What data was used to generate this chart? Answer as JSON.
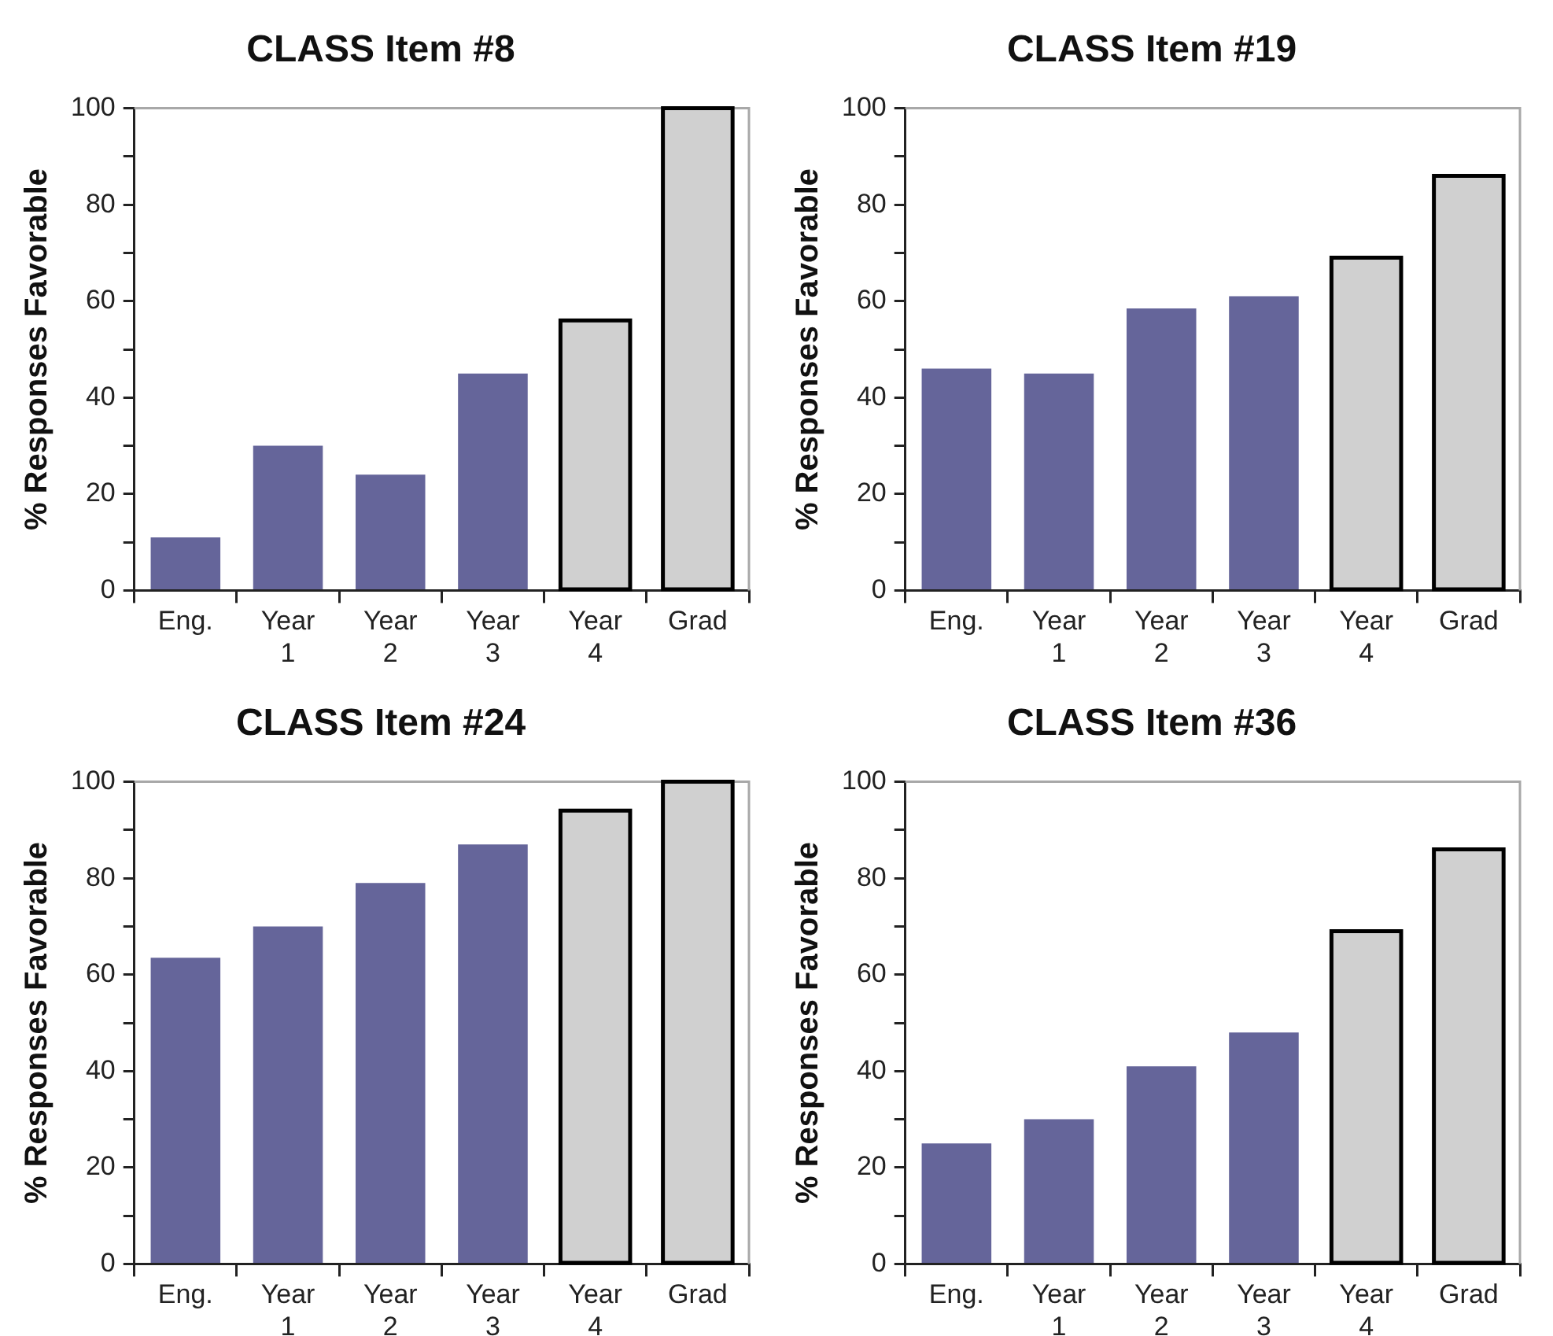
{
  "chart_data": [
    {
      "type": "bar",
      "title": "CLASS Item #8",
      "ylabel": "% Responses Favorable",
      "categories": [
        "Eng.",
        "Year 1",
        "Year 2",
        "Year 3",
        "Year 4",
        "Grad"
      ],
      "values": [
        11,
        30,
        24,
        45,
        56,
        100
      ],
      "colors": [
        "#65659a",
        "#65659a",
        "#65659a",
        "#65659a",
        "#d0d0d0",
        "#d0d0d0"
      ],
      "ylim": [
        0,
        100
      ],
      "yticks": [
        0,
        {
          "value": 10,
          "label": null
        },
        20,
        {
          "value": 30,
          "label": null
        },
        40,
        {
          "value": 50,
          "label": null
        },
        60,
        {
          "value": 70,
          "label": null
        },
        80,
        {
          "value": 90,
          "label": null
        },
        100
      ],
      "grid": false,
      "legend": false
    },
    {
      "type": "bar",
      "title": "CLASS Item #19",
      "ylabel": "% Responses Favorable",
      "categories": [
        "Eng.",
        "Year 1",
        "Year 2",
        "Year 3",
        "Year 4",
        "Grad"
      ],
      "values": [
        46,
        45,
        58.5,
        61,
        69,
        86
      ],
      "colors": [
        "#65659a",
        "#65659a",
        "#65659a",
        "#65659a",
        "#d0d0d0",
        "#d0d0d0"
      ],
      "ylim": [
        0,
        100
      ],
      "yticks": [
        0,
        {
          "value": 10,
          "label": null
        },
        20,
        {
          "value": 30,
          "label": null
        },
        40,
        {
          "value": 50,
          "label": null
        },
        60,
        {
          "value": 70,
          "label": null
        },
        80,
        {
          "value": 90,
          "label": null
        },
        100
      ],
      "grid": false,
      "legend": false
    },
    {
      "type": "bar",
      "title": "CLASS Item #24",
      "ylabel": "% Responses Favorable",
      "categories": [
        "Eng.",
        "Year 1",
        "Year 2",
        "Year 3",
        "Year 4",
        "Grad"
      ],
      "values": [
        63.5,
        70,
        79,
        87,
        94,
        100
      ],
      "colors": [
        "#65659a",
        "#65659a",
        "#65659a",
        "#65659a",
        "#d0d0d0",
        "#d0d0d0"
      ],
      "ylim": [
        0,
        100
      ],
      "yticks": [
        0,
        {
          "value": 10,
          "label": null
        },
        20,
        {
          "value": 30,
          "label": null
        },
        40,
        {
          "value": 50,
          "label": null
        },
        60,
        {
          "value": 70,
          "label": null
        },
        80,
        {
          "value": 90,
          "label": null
        },
        100
      ],
      "grid": false,
      "legend": false
    },
    {
      "type": "bar",
      "title": "CLASS Item #36",
      "ylabel": "% Responses Favorable",
      "categories": [
        "Eng.",
        "Year 1",
        "Year 2",
        "Year 3",
        "Year 4",
        "Grad"
      ],
      "values": [
        25,
        30,
        41,
        48,
        69,
        86
      ],
      "colors": [
        "#65659a",
        "#65659a",
        "#65659a",
        "#65659a",
        "#d0d0d0",
        "#d0d0d0"
      ],
      "ylim": [
        0,
        100
      ],
      "yticks": [
        0,
        {
          "value": 10,
          "label": null
        },
        20,
        {
          "value": 30,
          "label": null
        },
        40,
        {
          "value": 50,
          "label": null
        },
        60,
        {
          "value": 70,
          "label": null
        },
        80,
        {
          "value": 90,
          "label": null
        },
        100
      ],
      "grid": false,
      "legend": false
    }
  ]
}
